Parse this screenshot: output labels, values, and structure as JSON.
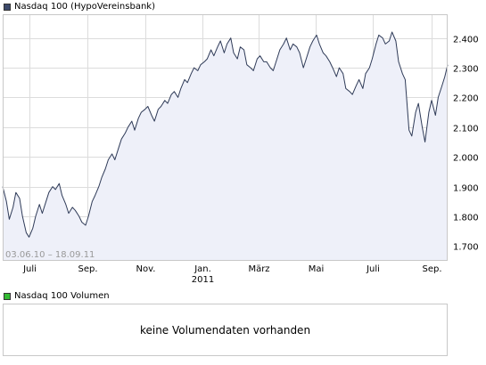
{
  "price_panel": {
    "legend_label": "Nasdaq 100 (HypoVereinsbank)",
    "legend_color": "#3c4a6b",
    "date_range_text": "03.06.10 – 18.09.11"
  },
  "volume_panel": {
    "legend_label": "Nasdaq 100 Volumen",
    "legend_color": "#33bb33",
    "message": "keine Volumendaten vorhanden"
  },
  "colors": {
    "line": "#2f3b58",
    "fill": "#eef0f9",
    "grid": "#dcdcdc",
    "frame": "#c8c8c8"
  },
  "chart_data": {
    "type": "area",
    "title": "Nasdaq 100 (HypoVereinsbank)",
    "x_start": "2010-06-03",
    "x_end": "2011-09-18",
    "ylim": [
      1650,
      2480
    ],
    "y_ticks": [
      1700,
      1800,
      1900,
      2000,
      2100,
      2200,
      2300,
      2400
    ],
    "y_tick_labels": [
      "1.700",
      "1.800",
      "1.900",
      "2.000",
      "2.100",
      "2.200",
      "2.300",
      "2.400"
    ],
    "x_ticks": [
      {
        "label": "Juli",
        "date": "2010-07-01"
      },
      {
        "label": "Sep.",
        "date": "2010-09-01"
      },
      {
        "label": "Nov.",
        "date": "2010-11-01"
      },
      {
        "label": "Jan.",
        "date": "2011-01-01",
        "sub": "2011"
      },
      {
        "label": "März",
        "date": "2011-03-01"
      },
      {
        "label": "Mai",
        "date": "2011-05-01"
      },
      {
        "label": "Juli",
        "date": "2011-07-01"
      },
      {
        "label": "Sep.",
        "date": "2011-09-01"
      }
    ],
    "grid": true,
    "series": [
      {
        "name": "Nasdaq 100 (HypoVereinsbank)",
        "x": [
          "2010-06-03",
          "2010-06-07",
          "2010-06-10",
          "2010-06-14",
          "2010-06-17",
          "2010-06-21",
          "2010-06-24",
          "2010-06-28",
          "2010-07-01",
          "2010-07-05",
          "2010-07-08",
          "2010-07-12",
          "2010-07-15",
          "2010-07-19",
          "2010-07-22",
          "2010-07-26",
          "2010-07-29",
          "2010-08-02",
          "2010-08-05",
          "2010-08-09",
          "2010-08-12",
          "2010-08-16",
          "2010-08-19",
          "2010-08-23",
          "2010-08-26",
          "2010-08-30",
          "2010-09-02",
          "2010-09-06",
          "2010-09-09",
          "2010-09-13",
          "2010-09-16",
          "2010-09-20",
          "2010-09-23",
          "2010-09-27",
          "2010-09-30",
          "2010-10-04",
          "2010-10-07",
          "2010-10-11",
          "2010-10-14",
          "2010-10-18",
          "2010-10-21",
          "2010-10-25",
          "2010-10-28",
          "2010-11-01",
          "2010-11-04",
          "2010-11-08",
          "2010-11-11",
          "2010-11-15",
          "2010-11-18",
          "2010-11-22",
          "2010-11-25",
          "2010-11-29",
          "2010-12-02",
          "2010-12-06",
          "2010-12-09",
          "2010-12-13",
          "2010-12-16",
          "2010-12-20",
          "2010-12-23",
          "2010-12-27",
          "2010-12-30",
          "2011-01-03",
          "2011-01-06",
          "2011-01-10",
          "2011-01-13",
          "2011-01-17",
          "2011-01-20",
          "2011-01-24",
          "2011-01-27",
          "2011-01-31",
          "2011-02-03",
          "2011-02-07",
          "2011-02-10",
          "2011-02-14",
          "2011-02-17",
          "2011-02-21",
          "2011-02-24",
          "2011-02-28",
          "2011-03-03",
          "2011-03-07",
          "2011-03-10",
          "2011-03-14",
          "2011-03-17",
          "2011-03-21",
          "2011-03-24",
          "2011-03-28",
          "2011-03-31",
          "2011-04-04",
          "2011-04-07",
          "2011-04-11",
          "2011-04-14",
          "2011-04-18",
          "2011-04-21",
          "2011-04-25",
          "2011-04-28",
          "2011-05-02",
          "2011-05-05",
          "2011-05-09",
          "2011-05-12",
          "2011-05-16",
          "2011-05-19",
          "2011-05-23",
          "2011-05-26",
          "2011-05-30",
          "2011-06-02",
          "2011-06-06",
          "2011-06-09",
          "2011-06-13",
          "2011-06-16",
          "2011-06-20",
          "2011-06-23",
          "2011-06-27",
          "2011-06-30",
          "2011-07-04",
          "2011-07-07",
          "2011-07-11",
          "2011-07-14",
          "2011-07-18",
          "2011-07-21",
          "2011-07-25",
          "2011-07-28",
          "2011-08-01",
          "2011-08-04",
          "2011-08-08",
          "2011-08-11",
          "2011-08-15",
          "2011-08-18",
          "2011-08-22",
          "2011-08-25",
          "2011-08-29",
          "2011-09-01",
          "2011-09-05",
          "2011-09-08",
          "2011-09-12",
          "2011-09-15",
          "2011-09-18"
        ],
        "values": [
          1900,
          1850,
          1790,
          1830,
          1880,
          1860,
          1800,
          1745,
          1730,
          1760,
          1800,
          1840,
          1810,
          1850,
          1880,
          1900,
          1890,
          1910,
          1870,
          1840,
          1810,
          1830,
          1820,
          1800,
          1780,
          1770,
          1800,
          1850,
          1870,
          1900,
          1930,
          1960,
          1990,
          2010,
          1990,
          2030,
          2060,
          2080,
          2100,
          2120,
          2090,
          2130,
          2150,
          2160,
          2170,
          2140,
          2120,
          2160,
          2170,
          2190,
          2180,
          2210,
          2220,
          2200,
          2230,
          2260,
          2250,
          2280,
          2300,
          2290,
          2310,
          2320,
          2330,
          2360,
          2340,
          2370,
          2390,
          2350,
          2380,
          2400,
          2350,
          2330,
          2370,
          2360,
          2310,
          2300,
          2290,
          2330,
          2340,
          2320,
          2320,
          2300,
          2290,
          2330,
          2360,
          2380,
          2400,
          2360,
          2380,
          2370,
          2350,
          2300,
          2330,
          2370,
          2390,
          2410,
          2380,
          2350,
          2340,
          2320,
          2300,
          2270,
          2300,
          2280,
          2230,
          2220,
          2210,
          2240,
          2260,
          2230,
          2280,
          2300,
          2330,
          2380,
          2410,
          2400,
          2380,
          2390,
          2420,
          2390,
          2320,
          2280,
          2260,
          2090,
          2070,
          2150,
          2180,
          2100,
          2050,
          2150,
          2190,
          2140,
          2200,
          2240,
          2270,
          2310
        ]
      }
    ]
  }
}
